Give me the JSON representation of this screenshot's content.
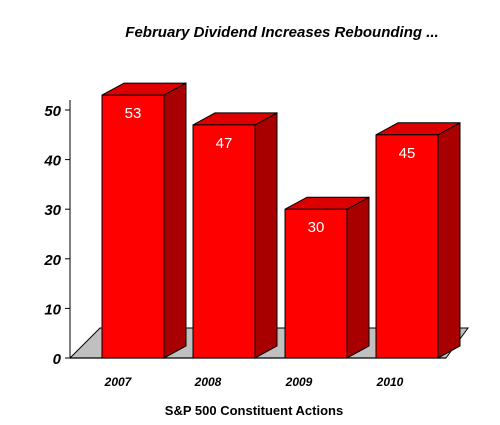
{
  "chart_data": {
    "type": "bar",
    "title": "February Dividend Increases Rebounding ...",
    "xlabel": "S&P 500 Constituent Actions",
    "ylabel": "",
    "categories": [
      "2007",
      "2008",
      "2009",
      "2010"
    ],
    "values": [
      53,
      47,
      30,
      45
    ],
    "ylim": [
      0,
      50
    ],
    "yticks": [
      0,
      10,
      20,
      30,
      40,
      50
    ],
    "data_labels": [
      "53",
      "47",
      "30",
      "45"
    ],
    "grid": false,
    "legend": "none",
    "style": "3d",
    "colors": {
      "bar_front": "#ff0000",
      "bar_top": "#dd0000",
      "bar_side": "#a80000",
      "bar_outline": "#000000",
      "floor": "#c0c0c0",
      "data_label": "#ffffff"
    }
  }
}
